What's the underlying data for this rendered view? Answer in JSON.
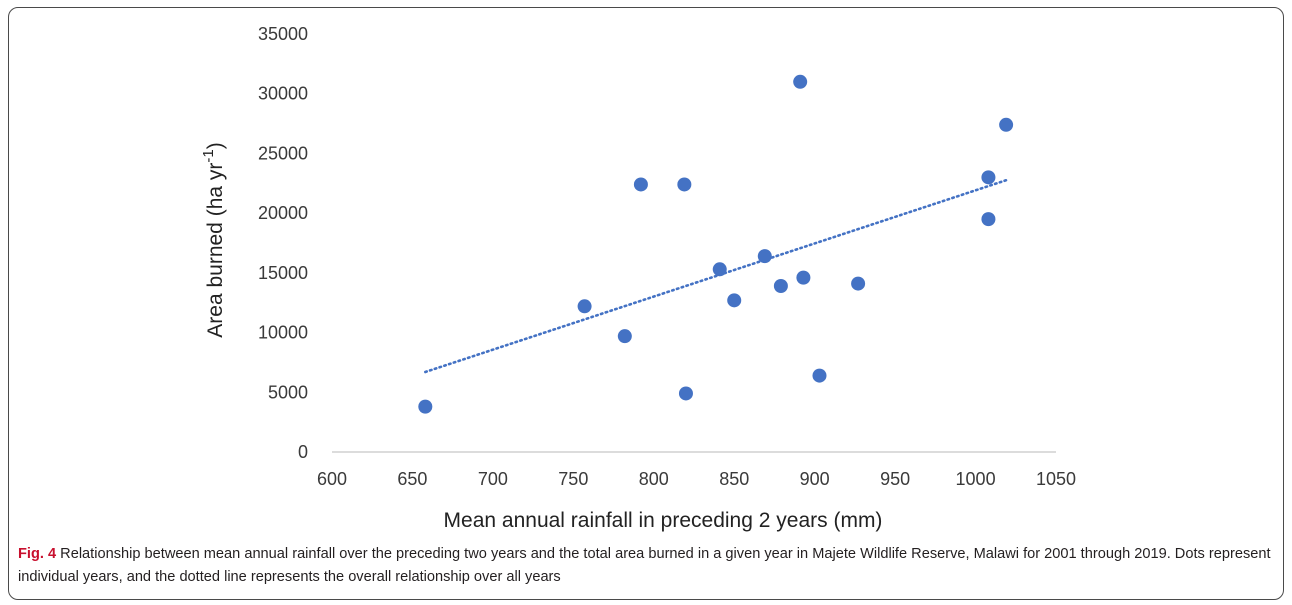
{
  "chart_data": {
    "type": "scatter",
    "xlabel": "Mean annual rainfall in preceding 2 years (mm)",
    "ylabel_main": "Area burned (ha yr",
    "ylabel_sup": "-1",
    "ylabel_close": ")",
    "xlim": [
      600,
      1050
    ],
    "ylim": [
      0,
      35000
    ],
    "xticks": [
      600,
      650,
      700,
      750,
      800,
      850,
      900,
      950,
      1000,
      1050
    ],
    "yticks": [
      0,
      5000,
      10000,
      15000,
      20000,
      25000,
      30000,
      35000
    ],
    "point_color": "#4472c4",
    "trendline": {
      "style": "dotted",
      "color": "#4472c4",
      "x": [
        658,
        1020
      ],
      "y": [
        6700,
        22800
      ]
    },
    "points": [
      {
        "x": 658,
        "y": 3800
      },
      {
        "x": 757,
        "y": 12200
      },
      {
        "x": 782,
        "y": 9700
      },
      {
        "x": 792,
        "y": 22400
      },
      {
        "x": 819,
        "y": 22400
      },
      {
        "x": 820,
        "y": 4900
      },
      {
        "x": 841,
        "y": 15300
      },
      {
        "x": 850,
        "y": 12700
      },
      {
        "x": 869,
        "y": 16400
      },
      {
        "x": 879,
        "y": 13900
      },
      {
        "x": 891,
        "y": 31000
      },
      {
        "x": 893,
        "y": 14600
      },
      {
        "x": 903,
        "y": 6400
      },
      {
        "x": 927,
        "y": 14100
      },
      {
        "x": 1008,
        "y": 23000
      },
      {
        "x": 1008,
        "y": 19500
      },
      {
        "x": 1019,
        "y": 27400
      }
    ]
  },
  "caption": {
    "label": "Fig. 4",
    "text": " Relationship between mean annual rainfall over the preceding two years and the total area burned in a given year in Majete Wildlife Reserve, Malawi for 2001 through 2019. Dots represent individual years, and the dotted line represents the overall relationship over all years"
  }
}
